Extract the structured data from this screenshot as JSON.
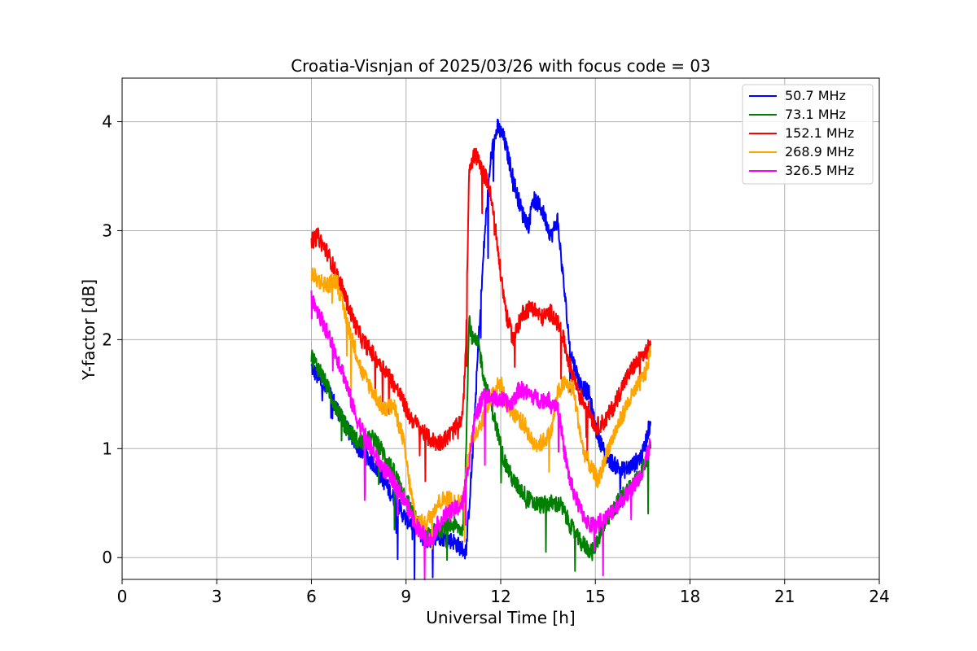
{
  "chart_data": {
    "type": "line",
    "title": "Croatia-Visnjan of 2025/03/26 with focus code = 03",
    "xlabel": "Universal Time [h]",
    "ylabel": "Y-factor [dB]",
    "xlim": [
      0,
      24
    ],
    "ylim": [
      -0.2,
      4.4
    ],
    "xticks": [
      0,
      3,
      6,
      9,
      12,
      15,
      18,
      21,
      24
    ],
    "xtick_labels": [
      "0",
      "3",
      "6",
      "9",
      "12",
      "15",
      "18",
      "21",
      "24"
    ],
    "yticks": [
      0,
      1,
      2,
      3,
      4
    ],
    "ytick_labels": [
      "0",
      "1",
      "2",
      "3",
      "4"
    ],
    "grid": true,
    "legend_position": "top-right",
    "series": [
      {
        "name": " 50.7 MHz",
        "color": "#0000ff",
        "x": [
          6.0,
          6.3,
          6.6,
          7.0,
          7.5,
          8.0,
          8.5,
          9.0,
          9.3,
          9.6,
          10.0,
          10.5,
          10.9,
          11.1,
          11.3,
          11.5,
          11.7,
          11.9,
          12.1,
          12.3,
          12.5,
          12.7,
          12.9,
          13.0,
          13.3,
          13.6,
          13.8,
          14.0,
          14.2,
          14.5,
          14.8,
          15.0,
          15.3,
          15.6,
          15.9,
          16.2,
          16.5,
          16.75
        ],
        "y": [
          1.75,
          1.6,
          1.5,
          1.25,
          1.0,
          0.85,
          0.6,
          0.35,
          0.3,
          0.15,
          0.2,
          0.15,
          0.05,
          0.9,
          2.0,
          3.0,
          3.7,
          3.95,
          3.85,
          3.6,
          3.35,
          3.15,
          3.05,
          3.3,
          3.2,
          2.95,
          3.1,
          2.5,
          1.9,
          1.6,
          1.5,
          1.2,
          0.95,
          0.85,
          0.8,
          0.85,
          0.95,
          1.25
        ]
      },
      {
        "name": " 73.1 MHz",
        "color": "#008000",
        "x": [
          6.0,
          6.3,
          6.6,
          7.0,
          7.5,
          8.0,
          8.5,
          9.0,
          9.3,
          9.6,
          10.0,
          10.5,
          10.8,
          10.9,
          11.0,
          11.1,
          11.3,
          11.5,
          11.7,
          11.9,
          12.1,
          12.4,
          12.7,
          13.0,
          13.3,
          13.6,
          13.9,
          14.2,
          14.5,
          14.7,
          14.9,
          15.2,
          15.5,
          15.8,
          16.1,
          16.4,
          16.75
        ],
        "y": [
          1.85,
          1.7,
          1.5,
          1.25,
          1.05,
          1.1,
          0.85,
          0.55,
          0.35,
          0.2,
          0.25,
          0.3,
          0.25,
          1.0,
          2.2,
          2.0,
          1.95,
          1.6,
          1.4,
          1.15,
          0.9,
          0.7,
          0.6,
          0.5,
          0.48,
          0.5,
          0.48,
          0.3,
          0.15,
          0.1,
          0.05,
          0.25,
          0.4,
          0.55,
          0.65,
          0.75,
          1.0
        ]
      },
      {
        "name": " 152.1 MHz",
        "color": "#ff0000",
        "x": [
          6.0,
          6.2,
          6.5,
          6.8,
          7.0,
          7.3,
          7.6,
          8.0,
          8.4,
          8.8,
          9.1,
          9.4,
          9.7,
          10.0,
          10.3,
          10.6,
          10.8,
          10.9,
          11.0,
          11.2,
          11.4,
          11.6,
          11.8,
          12.0,
          12.2,
          12.4,
          12.7,
          13.0,
          13.3,
          13.6,
          13.9,
          14.2,
          14.5,
          14.8,
          15.0,
          15.3,
          15.6,
          15.9,
          16.2,
          16.5,
          16.75
        ],
        "y": [
          2.9,
          2.95,
          2.8,
          2.6,
          2.45,
          2.2,
          2.0,
          1.85,
          1.7,
          1.5,
          1.3,
          1.2,
          1.1,
          1.05,
          1.1,
          1.2,
          1.3,
          2.0,
          3.6,
          3.7,
          3.55,
          3.45,
          3.1,
          2.6,
          2.2,
          2.0,
          2.25,
          2.3,
          2.2,
          2.25,
          2.1,
          1.75,
          1.5,
          1.35,
          1.2,
          1.25,
          1.4,
          1.6,
          1.75,
          1.85,
          1.95
        ]
      },
      {
        "name": " 268.9 MHz",
        "color": "#ffa500",
        "x": [
          6.0,
          6.2,
          6.5,
          6.8,
          7.0,
          7.3,
          7.6,
          8.0,
          8.3,
          8.6,
          8.9,
          9.1,
          9.3,
          9.6,
          10.0,
          10.3,
          10.6,
          10.8,
          11.0,
          11.2,
          11.4,
          11.6,
          11.8,
          12.0,
          12.2,
          12.5,
          12.8,
          13.0,
          13.3,
          13.6,
          13.8,
          14.0,
          14.3,
          14.6,
          14.9,
          15.1,
          15.4,
          15.7,
          16.0,
          16.3,
          16.6,
          16.75
        ],
        "y": [
          2.6,
          2.55,
          2.5,
          2.55,
          2.3,
          2.0,
          1.7,
          1.5,
          1.35,
          1.4,
          1.1,
          0.7,
          0.35,
          0.3,
          0.5,
          0.55,
          0.5,
          0.5,
          1.0,
          1.15,
          1.25,
          1.4,
          1.55,
          1.6,
          1.4,
          1.3,
          1.2,
          1.05,
          1.05,
          1.15,
          1.5,
          1.6,
          1.55,
          1.0,
          0.8,
          0.7,
          1.0,
          1.2,
          1.4,
          1.55,
          1.7,
          1.9
        ]
      },
      {
        "name": " 326.5 MHz",
        "color": "#ff00ff",
        "x": [
          6.0,
          6.3,
          6.6,
          7.0,
          7.4,
          7.8,
          8.2,
          8.6,
          9.0,
          9.3,
          9.6,
          9.8,
          10.0,
          10.3,
          10.6,
          10.8,
          11.0,
          11.2,
          11.5,
          11.8,
          12.0,
          12.3,
          12.6,
          12.9,
          13.2,
          13.5,
          13.8,
          14.0,
          14.2,
          14.5,
          14.8,
          15.0,
          15.3,
          15.6,
          15.9,
          16.2,
          16.5,
          16.75
        ],
        "y": [
          2.4,
          2.2,
          2.0,
          1.7,
          1.3,
          1.05,
          0.85,
          0.7,
          0.5,
          0.3,
          0.2,
          0.15,
          0.3,
          0.4,
          0.45,
          0.5,
          0.9,
          1.3,
          1.5,
          1.45,
          1.45,
          1.4,
          1.55,
          1.5,
          1.45,
          1.45,
          1.4,
          1.0,
          0.7,
          0.45,
          0.3,
          0.3,
          0.35,
          0.45,
          0.55,
          0.65,
          0.8,
          1.05
        ]
      }
    ]
  }
}
